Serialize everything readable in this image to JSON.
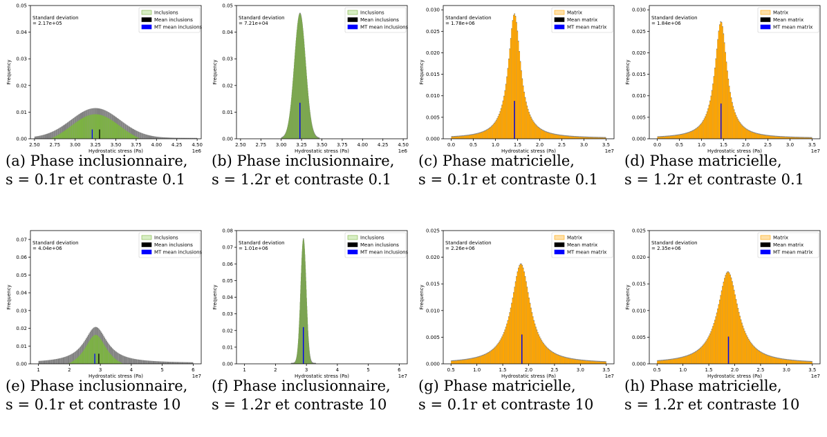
{
  "chart_data": [
    {
      "type": "histogram",
      "caption": [
        "(a) Phase inclusionnaire,",
        "s = 0.1r et contraste 0.1"
      ],
      "xlabel": "Hydrostatic stress (Pa)",
      "ylabel": "Frequency",
      "x_offset": "1e6",
      "xlim": [
        2.45,
        4.55
      ],
      "ylim": [
        0,
        0.05
      ],
      "xticks": [
        "2.50",
        "2.75",
        "3.00",
        "3.25",
        "3.50",
        "3.75",
        "4.00",
        "4.25",
        "4.50"
      ],
      "yticks": [
        "0.00",
        "0.01",
        "0.02",
        "0.03",
        "0.04",
        "0.05"
      ],
      "std_text": [
        "Standard deviation",
        "= 2.17e+05"
      ],
      "legend": [
        "Inclusions",
        "Mean inclusions",
        "MT mean inclusions"
      ],
      "fill_color": "#7cb342",
      "legend_fill": "#d7eec4",
      "legend_edge": "#7cb342",
      "distribution": {
        "shape": "gaussian",
        "center": 3.25,
        "width": 0.3,
        "peak": 0.0112,
        "xmin": 2.5,
        "xmax": 4.5,
        "dip": 0.002
      },
      "mean_value": 3.3,
      "mean_height": 0.0035,
      "mt_mean_value": 3.21,
      "mt_mean_height": 0.0035
    },
    {
      "type": "histogram",
      "caption": [
        "(b) Phase inclusionnaire,",
        "s = 1.2r et contraste 0.1"
      ],
      "xlabel": "Hydrostatic stress (Pa)",
      "ylabel": "Frequency",
      "x_offset": "1e6",
      "xlim": [
        2.45,
        4.55
      ],
      "ylim": [
        0,
        0.05
      ],
      "xticks": [
        "2.50",
        "2.75",
        "3.00",
        "3.25",
        "3.50",
        "3.75",
        "4.00",
        "4.25",
        "4.50"
      ],
      "yticks": [
        "0.00",
        "0.01",
        "0.02",
        "0.03",
        "0.04",
        "0.05"
      ],
      "std_text": [
        "Standard deviation",
        "= 7.21e+04"
      ],
      "legend": [
        "Inclusions",
        "Mean inclusions",
        "MT mean inclusions"
      ],
      "fill_color": "#7cb342",
      "legend_fill": "#d7eec4",
      "legend_edge": "#7cb342",
      "distribution": {
        "shape": "gaussian",
        "center": 3.23,
        "width": 0.07,
        "peak": 0.047,
        "xmin": 3.0,
        "xmax": 3.47,
        "dip": 0
      },
      "mean_value": 3.23,
      "mean_height": 0.0135,
      "mt_mean_value": 3.23,
      "mt_mean_height": 0.0135
    },
    {
      "type": "histogram",
      "caption": [
        "(c) Phase matricielle,",
        "s = 0.1r et contraste 0.1"
      ],
      "xlabel": "Hydrostatic stress (Pa)",
      "ylabel": "Frequency",
      "x_offset": "1e7",
      "xlim": [
        -0.18,
        3.68
      ],
      "ylim": [
        0,
        0.031
      ],
      "xticks": [
        "0.0",
        "0.5",
        "1.0",
        "1.5",
        "2.0",
        "2.5",
        "3.0",
        "3.5"
      ],
      "yticks": [
        "0.000",
        "0.005",
        "0.010",
        "0.015",
        "0.020",
        "0.025",
        "0.030"
      ],
      "std_text": [
        "Standard deviation",
        "= 1.78e+06"
      ],
      "legend": [
        "Matrix",
        "Mean matrix",
        "MT mean matrix"
      ],
      "fill_color": "#ffa500",
      "legend_fill": "#ffe0a8",
      "legend_edge": "#ffa500",
      "distribution": {
        "shape": "lorentz",
        "center": 1.43,
        "width": 0.17,
        "peak": 0.029,
        "xmin": 0.0,
        "xmax": 3.5,
        "dip": 0
      },
      "mean_value": 1.43,
      "mean_height": 0.0088,
      "mt_mean_value": 1.43,
      "mt_mean_height": 0.0088
    },
    {
      "type": "histogram",
      "caption": [
        "(d) Phase matricielle,",
        "s = 1.2r et contraste 0.1"
      ],
      "xlabel": "Hydrostatic stress (Pa)",
      "ylabel": "Frequency",
      "x_offset": "1e7",
      "xlim": [
        -0.18,
        3.68
      ],
      "ylim": [
        0,
        0.031
      ],
      "xticks": [
        "0.0",
        "0.5",
        "1.0",
        "1.5",
        "2.0",
        "2.5",
        "3.0",
        "3.5"
      ],
      "yticks": [
        "0.000",
        "0.005",
        "0.010",
        "0.015",
        "0.020",
        "0.025",
        "0.030"
      ],
      "std_text": [
        "Standard deviation",
        "= 1.84e+06"
      ],
      "legend": [
        "Matrix",
        "Mean matrix",
        "MT mean matrix"
      ],
      "fill_color": "#ffa500",
      "legend_fill": "#ffe0a8",
      "legend_edge": "#ffa500",
      "distribution": {
        "shape": "lorentz",
        "center": 1.44,
        "width": 0.17,
        "peak": 0.0272,
        "xmin": 0.0,
        "xmax": 3.5,
        "dip": 0
      },
      "mean_value": 1.44,
      "mean_height": 0.0082,
      "mt_mean_value": 1.44,
      "mt_mean_height": 0.0082
    },
    {
      "type": "histogram",
      "caption": [
        "(e) Phase inclusionnaire,",
        "s = 0.1r et contraste 10"
      ],
      "xlabel": "Hydrostatic stress (Pa)",
      "ylabel": "Frequency",
      "x_offset": "1e7",
      "xlim": [
        0.74,
        6.26
      ],
      "ylim": [
        0,
        0.075
      ],
      "xticks": [
        "1",
        "2",
        "3",
        "4",
        "5",
        "6"
      ],
      "yticks": [
        "0.00",
        "0.01",
        "0.02",
        "0.03",
        "0.04",
        "0.05",
        "0.06",
        "0.07"
      ],
      "std_text": [
        "Standard deviation",
        "= 4.04e+06"
      ],
      "legend": [
        "Inclusions",
        "Mean inclusions",
        "MT mean inclusions"
      ],
      "fill_color": "#7cb342",
      "legend_fill": "#d7eec4",
      "legend_edge": "#7cb342",
      "distribution": {
        "shape": "lorentz",
        "center": 2.85,
        "width": 0.45,
        "peak": 0.0203,
        "xmin": 1.0,
        "xmax": 6.0,
        "dip": 0.004
      },
      "mean_value": 2.95,
      "mean_height": 0.0057,
      "mt_mean_value": 2.82,
      "mt_mean_height": 0.0057
    },
    {
      "type": "histogram",
      "caption": [
        "(f) Phase inclusionnaire,",
        "s = 1.2r et contraste 10"
      ],
      "xlabel": "Hydrostatic stress (Pa)",
      "ylabel": "Frequency",
      "x_offset": "1e7",
      "xlim": [
        0.74,
        6.26
      ],
      "ylim": [
        0,
        0.08
      ],
      "xticks": [
        "1",
        "2",
        "3",
        "4",
        "5",
        "6"
      ],
      "yticks": [
        "0.00",
        "0.01",
        "0.02",
        "0.03",
        "0.04",
        "0.05",
        "0.06",
        "0.07",
        "0.08"
      ],
      "std_text": [
        "Standard deviation",
        "= 1.01e+06"
      ],
      "legend": [
        "Inclusions",
        "Mean inclusions",
        "MT mean inclusions"
      ],
      "fill_color": "#7cb342",
      "legend_fill": "#d7eec4",
      "legend_edge": "#7cb342",
      "distribution": {
        "shape": "gaussian",
        "center": 2.9,
        "width": 0.09,
        "peak": 0.075,
        "xmin": 2.5,
        "xmax": 3.3,
        "dip": 0
      },
      "mean_value": 2.9,
      "mean_height": 0.022,
      "mt_mean_value": 2.9,
      "mt_mean_height": 0.022
    },
    {
      "type": "histogram",
      "caption": [
        "(g) Phase matricielle,",
        "s = 0.1r et contraste 10"
      ],
      "xlabel": "Hydrostatic stress (Pa)",
      "ylabel": "Frequency",
      "x_offset": "1e7",
      "xlim": [
        0.35,
        3.65
      ],
      "ylim": [
        0,
        0.025
      ],
      "xticks": [
        "0.5",
        "1.0",
        "1.5",
        "2.0",
        "2.5",
        "3.0",
        "3.5"
      ],
      "yticks": [
        "0.000",
        "0.005",
        "0.010",
        "0.015",
        "0.020",
        "0.025"
      ],
      "std_text": [
        "Standard deviation",
        "= 2.26e+06"
      ],
      "legend": [
        "Matrix",
        "Mean matrix",
        "MT mean matrix"
      ],
      "fill_color": "#ffa500",
      "legend_fill": "#ffe0a8",
      "legend_edge": "#ffa500",
      "distribution": {
        "shape": "lorentz",
        "center": 1.85,
        "width": 0.22,
        "peak": 0.0187,
        "xmin": 0.5,
        "xmax": 3.5,
        "dip": 0
      },
      "mean_value": 1.87,
      "mean_height": 0.0055,
      "mt_mean_value": 1.87,
      "mt_mean_height": 0.0055
    },
    {
      "type": "histogram",
      "caption": [
        "(h) Phase matricielle,",
        "s = 1.2r et contraste 10"
      ],
      "xlabel": "Hydrostatic stress (Pa)",
      "ylabel": "Frequency",
      "x_offset": "1e7",
      "xlim": [
        0.35,
        3.65
      ],
      "ylim": [
        0,
        0.025
      ],
      "xticks": [
        "0.5",
        "1.0",
        "1.5",
        "2.0",
        "2.5",
        "3.0",
        "3.5"
      ],
      "yticks": [
        "0.000",
        "0.005",
        "0.010",
        "0.015",
        "0.020",
        "0.025"
      ],
      "std_text": [
        "Standard deviation",
        "= 2.35e+06"
      ],
      "legend": [
        "Matrix",
        "Mean matrix",
        "MT mean matrix"
      ],
      "fill_color": "#ffa500",
      "legend_fill": "#ffe0a8",
      "legend_edge": "#ffa500",
      "distribution": {
        "shape": "lorentz",
        "center": 1.87,
        "width": 0.24,
        "peak": 0.0172,
        "xmin": 0.5,
        "xmax": 3.5,
        "dip": 0
      },
      "mean_value": 1.88,
      "mean_height": 0.0051,
      "mt_mean_value": 1.88,
      "mt_mean_height": 0.0051
    }
  ]
}
